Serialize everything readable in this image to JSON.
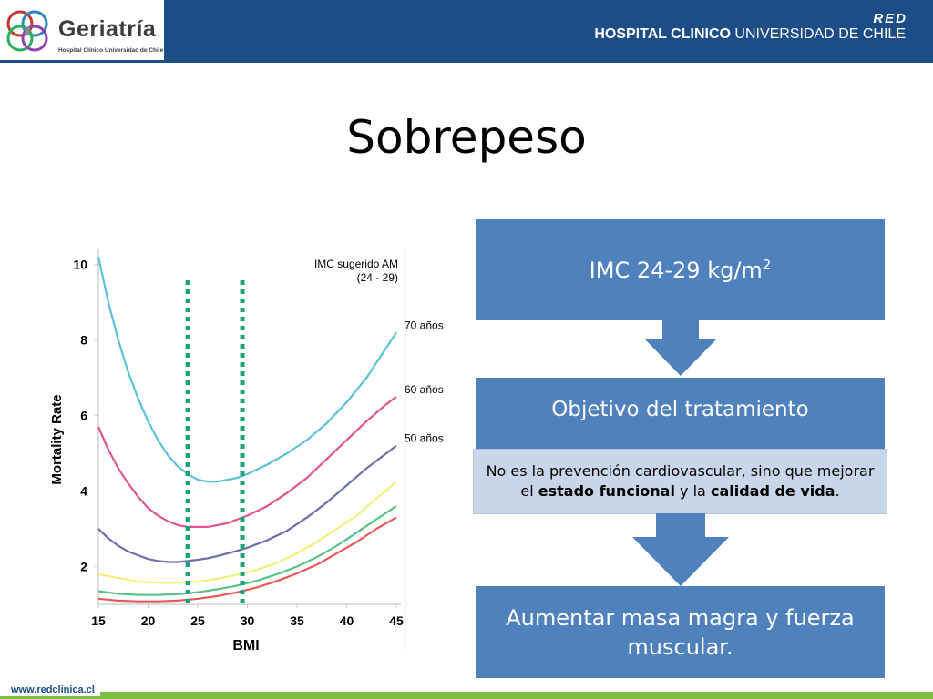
{
  "header": {
    "logo_title": "Geriatría",
    "logo_subtitle": "Hospital Clínico Universidad de Chile",
    "red_label": "RED",
    "hospital_bold": "HOSPITAL CLINICO",
    "hospital_rest": " UNIVERSIDAD DE CHILE",
    "colors": {
      "banner": "#1d4d87",
      "footer_green": "#7cbf3f"
    }
  },
  "slide": {
    "title": "Sobrepeso"
  },
  "flow": {
    "box1_text": "IMC 24-29 kg/m",
    "box1_sup": "2",
    "box2_text": "Objetivo del tratamiento",
    "note_part1": "No es la prevención cardiovascular, sino que mejorar el ",
    "note_bold1": "estado funcional",
    "note_part2": " y la ",
    "note_bold2": "calidad de vida",
    "note_part3": ".",
    "box3_text": "Aumentar masa magra y fuerza muscular.",
    "colors": {
      "box": "#4f81bd",
      "note": "#c9d5e9"
    }
  },
  "chart_data": {
    "type": "line",
    "xlabel": "BMI",
    "ylabel": "Mortality Rate",
    "xlim": [
      15,
      45
    ],
    "ylim": [
      1,
      10.4
    ],
    "x_ticks": [
      15,
      20,
      25,
      30,
      35,
      40,
      45
    ],
    "y_ticks": [
      2,
      4,
      6,
      8,
      10
    ],
    "annotation_title": "IMC sugerido AM",
    "annotation_range": "(24 - 29)",
    "reference_lines": [
      24,
      29.5
    ],
    "reference_color": "#1aa37a",
    "series": [
      {
        "name": "70 años",
        "color": "#5bc0d8",
        "x": [
          15,
          16,
          17,
          18,
          19,
          20,
          21,
          22,
          23,
          24,
          25,
          26,
          27,
          28,
          29,
          30,
          32,
          34,
          36,
          38,
          40,
          42,
          44,
          45
        ],
        "y": [
          10.2,
          9.0,
          8.0,
          7.15,
          6.45,
          5.85,
          5.35,
          4.95,
          4.65,
          4.45,
          4.3,
          4.25,
          4.25,
          4.3,
          4.35,
          4.45,
          4.7,
          5.0,
          5.35,
          5.8,
          6.35,
          7.0,
          7.8,
          8.2
        ]
      },
      {
        "name": "60 años",
        "color": "#e0548f",
        "x": [
          15,
          16,
          17,
          18,
          19,
          20,
          21,
          22,
          23,
          24,
          25,
          26,
          27,
          28,
          29,
          30,
          32,
          34,
          36,
          38,
          40,
          42,
          44,
          45
        ],
        "y": [
          5.7,
          5.1,
          4.6,
          4.2,
          3.85,
          3.55,
          3.35,
          3.2,
          3.1,
          3.05,
          3.05,
          3.05,
          3.1,
          3.15,
          3.25,
          3.35,
          3.6,
          3.95,
          4.35,
          4.85,
          5.35,
          5.85,
          6.3,
          6.5
        ]
      },
      {
        "name": "50 años",
        "color": "#6f6fa8",
        "x": [
          15,
          16,
          17,
          18,
          19,
          20,
          21,
          22,
          23,
          24,
          25,
          26,
          27,
          28,
          29,
          30,
          32,
          34,
          36,
          38,
          40,
          42,
          44,
          45
        ],
        "y": [
          3.0,
          2.75,
          2.55,
          2.4,
          2.3,
          2.2,
          2.15,
          2.12,
          2.12,
          2.15,
          2.18,
          2.22,
          2.28,
          2.35,
          2.42,
          2.5,
          2.7,
          2.95,
          3.3,
          3.7,
          4.15,
          4.6,
          5.0,
          5.2
        ]
      },
      {
        "color": "#f2ef7a",
        "x": [
          15,
          17,
          19,
          21,
          23,
          25,
          27,
          29,
          31,
          33,
          35,
          37,
          39,
          41,
          43,
          45
        ],
        "y": [
          1.8,
          1.7,
          1.6,
          1.57,
          1.57,
          1.6,
          1.68,
          1.78,
          1.92,
          2.1,
          2.35,
          2.65,
          3.0,
          3.35,
          3.8,
          4.25
        ]
      },
      {
        "color": "#5cc089",
        "x": [
          15,
          17,
          19,
          21,
          23,
          25,
          27,
          29,
          31,
          33,
          35,
          37,
          39,
          41,
          43,
          45
        ],
        "y": [
          1.35,
          1.28,
          1.25,
          1.25,
          1.27,
          1.32,
          1.4,
          1.5,
          1.63,
          1.8,
          2.0,
          2.25,
          2.55,
          2.9,
          3.25,
          3.6
        ]
      },
      {
        "color": "#e85a5a",
        "x": [
          15,
          17,
          19,
          21,
          23,
          25,
          27,
          29,
          31,
          33,
          35,
          37,
          39,
          41,
          43,
          45
        ],
        "y": [
          1.15,
          1.1,
          1.08,
          1.08,
          1.1,
          1.15,
          1.22,
          1.32,
          1.45,
          1.62,
          1.82,
          2.05,
          2.35,
          2.65,
          3.0,
          3.3
        ]
      }
    ]
  },
  "footer": {
    "url": "www.redclinica.cl"
  }
}
